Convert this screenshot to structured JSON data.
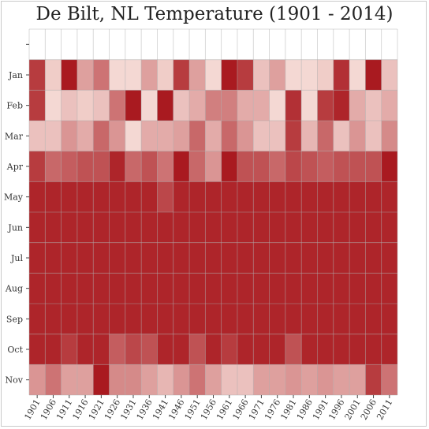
{
  "chart_data": {
    "type": "heatmap",
    "title": "De Bilt, NL Temperature (1901 - 2014)",
    "xlabel": "",
    "ylabel": "",
    "x_tick_labels": [
      "1901",
      "1906",
      "1911",
      "1916",
      "1921",
      "1926",
      "1931",
      "1936",
      "1941",
      "1946",
      "1951",
      "1956",
      "1961",
      "1966",
      "1971",
      "1976",
      "1981",
      "1986",
      "1991",
      "1996",
      "2001",
      "2006",
      "2011"
    ],
    "y_categories": [
      "",
      "Jan",
      "Feb",
      "Mar",
      "Apr",
      "May",
      "Jun",
      "Jul",
      "Aug",
      "Sep",
      "Oct",
      "Nov"
    ],
    "value_scale": "intensity 0 (lightest) to 1 (darkest red)",
    "rows": {
      "Jan": [
        0.8,
        0.15,
        0.95,
        0.35,
        0.55,
        0.1,
        0.1,
        0.35,
        0.15,
        0.8,
        0.35,
        0.1,
        0.95,
        0.8,
        0.2,
        0.35,
        0.1,
        0.1,
        0.15,
        0.85,
        0.1,
        0.95,
        0.2
      ],
      "Feb": [
        0.8,
        0.1,
        0.2,
        0.15,
        0.2,
        0.55,
        0.95,
        0.1,
        0.95,
        0.2,
        0.3,
        0.5,
        0.5,
        0.3,
        0.3,
        0.1,
        0.85,
        0.1,
        0.8,
        0.9,
        0.3,
        0.2,
        0.3
      ],
      "Mar": [
        0.2,
        0.2,
        0.4,
        0.3,
        0.6,
        0.4,
        0.1,
        0.3,
        0.3,
        0.35,
        0.6,
        0.3,
        0.6,
        0.4,
        0.2,
        0.2,
        0.8,
        0.25,
        0.6,
        0.2,
        0.4,
        0.2,
        0.45
      ],
      "Apr": [
        0.8,
        0.6,
        0.65,
        0.7,
        0.7,
        0.9,
        0.6,
        0.7,
        0.55,
        0.95,
        0.6,
        0.4,
        0.95,
        0.7,
        0.7,
        0.6,
        0.75,
        0.7,
        0.65,
        0.7,
        0.7,
        0.7,
        0.95
      ],
      "May": [
        0.9,
        0.9,
        0.9,
        0.9,
        0.9,
        0.9,
        0.9,
        0.9,
        0.75,
        0.9,
        0.9,
        0.9,
        0.9,
        0.9,
        0.9,
        0.9,
        0.9,
        0.9,
        0.9,
        0.9,
        0.9,
        0.9,
        0.9
      ],
      "Jun": [
        0.9,
        0.9,
        0.9,
        0.9,
        0.9,
        0.9,
        0.9,
        0.9,
        0.9,
        0.9,
        0.9,
        0.9,
        0.9,
        0.9,
        0.9,
        0.9,
        0.9,
        0.9,
        0.9,
        0.9,
        0.9,
        0.9,
        0.9
      ],
      "Jul": [
        0.9,
        0.9,
        0.9,
        0.9,
        0.9,
        0.9,
        0.9,
        0.9,
        0.9,
        0.9,
        0.9,
        0.9,
        0.9,
        0.9,
        0.9,
        0.9,
        0.9,
        0.9,
        0.9,
        0.9,
        0.9,
        0.9,
        0.9
      ],
      "Aug": [
        0.9,
        0.9,
        0.9,
        0.9,
        0.9,
        0.9,
        0.9,
        0.9,
        0.9,
        0.9,
        0.9,
        0.9,
        0.9,
        0.9,
        0.9,
        0.9,
        0.9,
        0.9,
        0.9,
        0.9,
        0.9,
        0.9,
        0.9
      ],
      "Sep": [
        0.9,
        0.9,
        0.9,
        0.9,
        0.9,
        0.9,
        0.9,
        0.9,
        0.9,
        0.9,
        0.9,
        0.9,
        0.9,
        0.9,
        0.9,
        0.9,
        0.9,
        0.9,
        0.9,
        0.9,
        0.9,
        0.9,
        0.9
      ],
      "Oct": [
        0.9,
        0.9,
        0.8,
        0.9,
        0.9,
        0.65,
        0.75,
        0.7,
        0.9,
        0.9,
        0.7,
        0.9,
        0.8,
        0.9,
        0.9,
        0.9,
        0.7,
        0.9,
        0.9,
        0.9,
        0.9,
        0.9,
        0.9
      ],
      "Nov": [
        0.4,
        0.55,
        0.35,
        0.35,
        0.95,
        0.45,
        0.45,
        0.35,
        0.25,
        0.4,
        0.55,
        0.35,
        0.2,
        0.2,
        0.35,
        0.35,
        0.4,
        0.35,
        0.4,
        0.35,
        0.35,
        0.8,
        0.55
      ]
    },
    "color_low": "#fdeee8",
    "color_high": "#a50f15",
    "grid": true,
    "legend": "none"
  }
}
